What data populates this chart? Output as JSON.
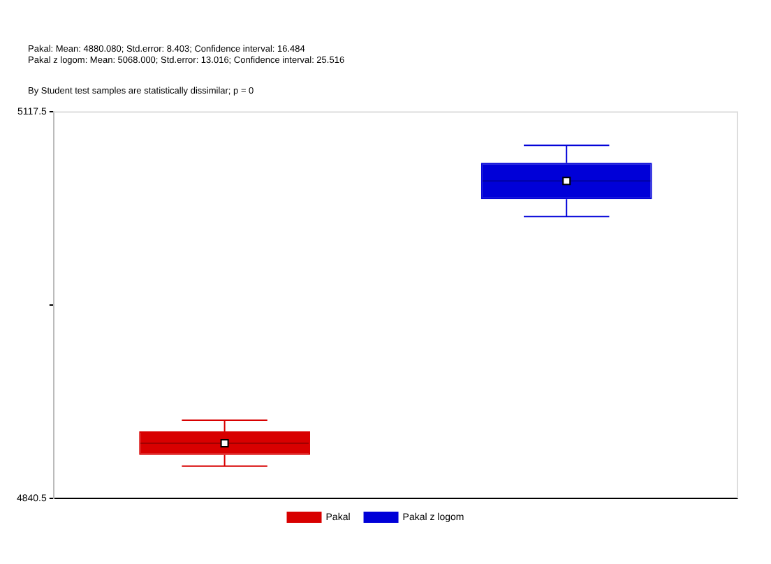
{
  "chart_data": {
    "type": "box",
    "annotations": [
      "Pakal: Mean: 4880.080; Std.error: 8.403; Confidence interval: 16.484",
      "Pakal z logom: Mean: 5068.000; Std.error: 13.016; Confidence interval: 25.516",
      "By Student test samples are statistically dissimilar; p = 0"
    ],
    "categories": [
      null
    ],
    "series": [
      {
        "name": "Pakal",
        "color": "#d80000",
        "boxes": [
          {
            "low": 4863.596,
            "q1": 4871.677,
            "median": 4880.08,
            "q3": 4888.483,
            "high": 4896.564,
            "mean": 4880.08
          }
        ]
      },
      {
        "name": "Pakal z logom",
        "color": "#0000d8",
        "boxes": [
          {
            "low": 5042.484,
            "q1": 5054.984,
            "median": 5068,
            "q3": 5081.016,
            "high": 5093.516,
            "mean": 5068
          }
        ]
      }
    ],
    "ylim": [
      4840.5,
      5117.5
    ],
    "yticks": [
      4840.5,
      {
        "value": 4979,
        "label": null
      },
      5117.5
    ],
    "tick_labels": "y",
    "grid": false,
    "legend": "bottom"
  }
}
